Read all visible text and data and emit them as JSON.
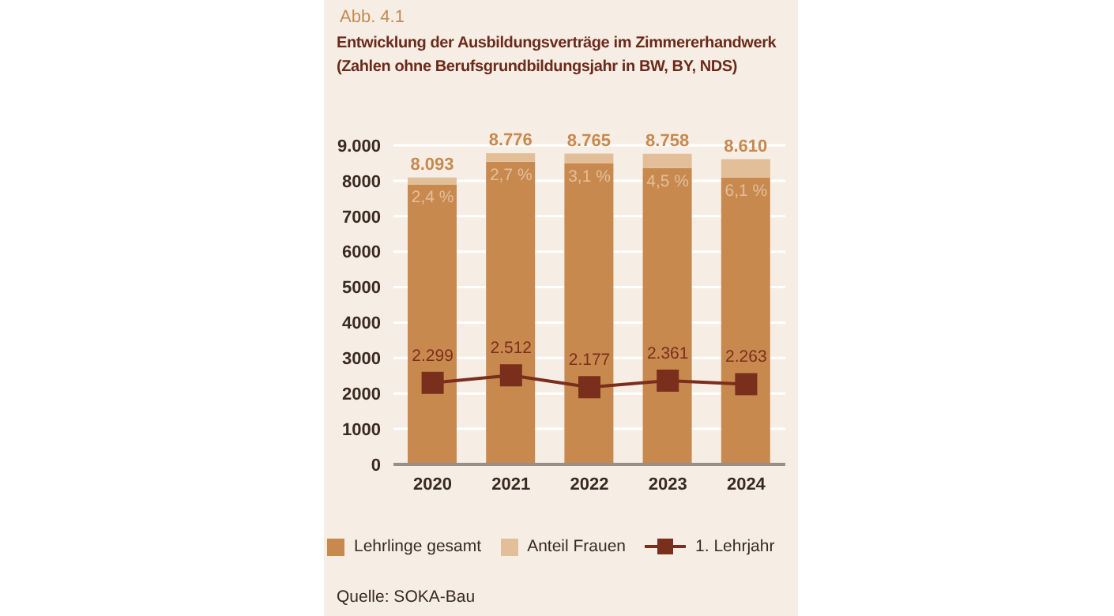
{
  "chart_data": {
    "type": "bar",
    "title": "Entwicklung der Ausbildungsverträge im Zimmererhandwerk\n(Zahlen ohne Berufsgrundbildungsjahr in BW, BY, NDS)",
    "annotations": [
      "Abb. 4.1",
      {
        "text": "2,4 %",
        "x": "2020",
        "y": 7900
      },
      {
        "text": "2,7 %",
        "x": "2021",
        "y": 8540
      },
      {
        "text": "3,1 %",
        "x": "2022",
        "y": 8490
      },
      {
        "text": "4,5 %",
        "x": "2023",
        "y": 8360
      },
      {
        "text": "6,1 %",
        "x": "2024",
        "y": 8090
      },
      "Quelle: SOKA-Bau"
    ],
    "categories": [
      "2020",
      "2021",
      "2022",
      "2023",
      "2024"
    ],
    "series": [
      {
        "name": "Lehrlinge gesamt",
        "color": "#c8894f",
        "values": [
          7900,
          8540,
          8490,
          8360,
          8090
        ]
      },
      {
        "name": "Anteil Frauen",
        "color": "#e3bf99",
        "values": [
          193,
          236,
          275,
          398,
          520
        ]
      },
      {
        "name": "1. Lehrjahr",
        "type": "line",
        "color": "#7a2e1c",
        "values": [
          2299,
          2512,
          2177,
          2361,
          2263
        ],
        "value_labels": [
          "2.299",
          "2.512",
          "2.177",
          "2.361",
          "2.263"
        ]
      }
    ],
    "stacked": true,
    "totals": [
      "8.093",
      "8.776",
      "8.765",
      "8.758",
      "8.610"
    ],
    "ylim": [
      0,
      9000
    ],
    "yticks": [
      0,
      1000,
      2000,
      3000,
      4000,
      5000,
      6000,
      7000,
      8000,
      {
        "value": 9000,
        "label": "9.000"
      }
    ],
    "grid": "y",
    "legend": "bottom",
    "marker": "square",
    "line_style": "solid"
  }
}
